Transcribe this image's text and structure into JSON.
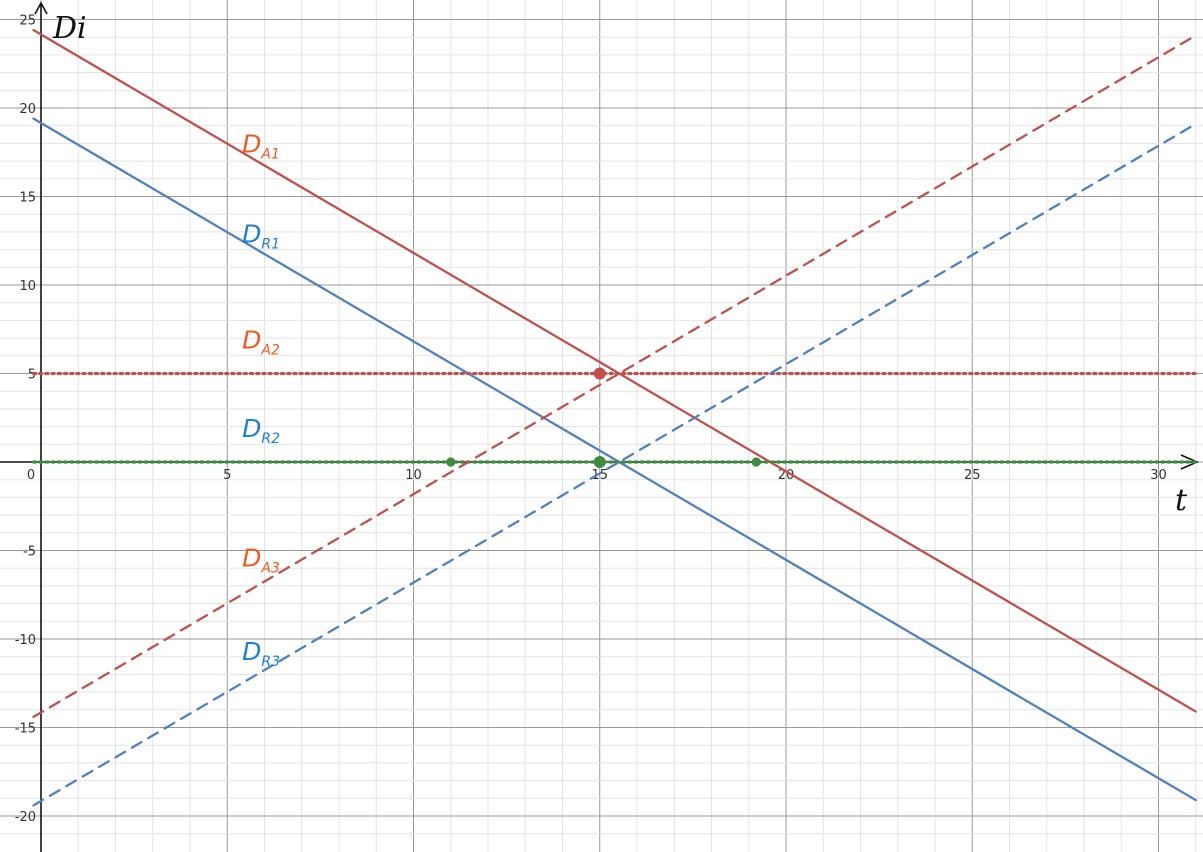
{
  "chart_data": {
    "type": "line",
    "xlabel": "t",
    "ylabel": "Di",
    "xlim": [
      -0.2,
      31
    ],
    "ylim": [
      -21,
      25.4
    ],
    "grid": true,
    "x_ticks": [
      0,
      5,
      10,
      15,
      20,
      25,
      30
    ],
    "y_ticks": [
      25,
      20,
      15,
      10,
      5,
      -5,
      -10,
      -15,
      -20
    ],
    "colors": {
      "red": "#c0504d",
      "blue": "#4f81bd",
      "green": "#3d8c40",
      "label_red": "#ef5a21",
      "label_blue": "#1e7fd6"
    },
    "series": [
      {
        "name": "DA1",
        "main": "D",
        "sub": "A1",
        "style": "solid",
        "color": "red",
        "points": [
          [
            -0.2,
            24.4
          ],
          [
            31,
            -14.1
          ]
        ]
      },
      {
        "name": "DR1",
        "main": "D",
        "sub": "R1",
        "style": "solid",
        "color": "blue",
        "points": [
          [
            -0.2,
            19.4
          ],
          [
            31,
            -19.1
          ]
        ]
      },
      {
        "name": "DA2",
        "main": "D",
        "sub": "A2",
        "style": "dotted",
        "color": "red",
        "points": [
          [
            -0.2,
            5
          ],
          [
            31,
            5
          ]
        ]
      },
      {
        "name": "DR2",
        "main": "D",
        "sub": "R2",
        "style": "dotted",
        "color": "green",
        "points": [
          [
            -0.2,
            0
          ],
          [
            31,
            0
          ]
        ]
      },
      {
        "name": "DA3",
        "main": "D",
        "sub": "A3",
        "style": "dashed",
        "color": "red",
        "points": [
          [
            -0.2,
            -14.4
          ],
          [
            31,
            24.1
          ]
        ]
      },
      {
        "name": "DR3",
        "main": "D",
        "sub": "R3",
        "style": "dashed",
        "color": "blue",
        "points": [
          [
            -0.2,
            -19.4
          ],
          [
            31,
            19.1
          ]
        ]
      }
    ],
    "label_positions": [
      {
        "series": "DA1",
        "x": 5.4,
        "y": 17.5
      },
      {
        "series": "DR1",
        "x": 5.4,
        "y": 12.4
      },
      {
        "series": "DA2",
        "x": 5.4,
        "y": 6.4
      },
      {
        "series": "DR2",
        "x": 5.4,
        "y": 1.4
      },
      {
        "series": "DA3",
        "x": 5.4,
        "y": -5.9
      },
      {
        "series": "DR3",
        "x": 5.4,
        "y": -11.2
      }
    ],
    "points": [
      {
        "x": 15,
        "y": 5,
        "color": "red",
        "size": "large"
      },
      {
        "x": 15,
        "y": 0,
        "color": "green",
        "size": "large"
      },
      {
        "x": 11,
        "y": 0,
        "color": "green",
        "size": "small"
      },
      {
        "x": 19.2,
        "y": 0,
        "color": "green",
        "size": "small"
      }
    ]
  }
}
